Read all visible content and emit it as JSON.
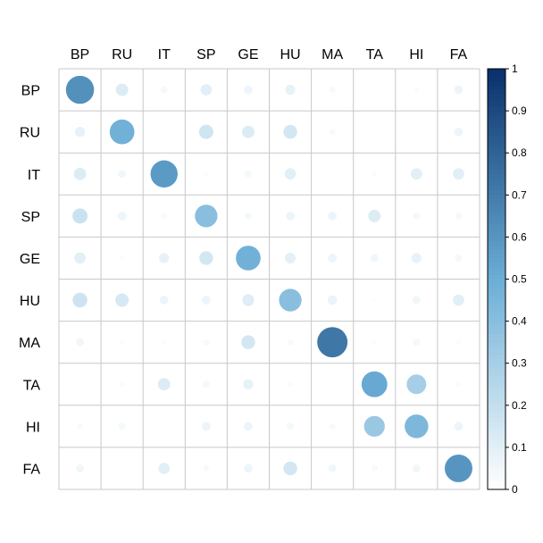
{
  "chart_data": {
    "type": "heatmap",
    "subtype": "correlation-circle-matrix",
    "title": "",
    "xlabel": "",
    "ylabel": "",
    "categories": [
      "BP",
      "RU",
      "IT",
      "SP",
      "GE",
      "HU",
      "MA",
      "TA",
      "HI",
      "FA"
    ],
    "matrix": [
      [
        0.62,
        0.12,
        0.04,
        0.1,
        0.06,
        0.08,
        0.03,
        0.0,
        0.02,
        0.06
      ],
      [
        0.08,
        0.48,
        0.0,
        0.16,
        0.12,
        0.15,
        0.03,
        0.0,
        0.0,
        0.06
      ],
      [
        0.12,
        0.05,
        0.58,
        0.02,
        0.04,
        0.1,
        0.0,
        0.02,
        0.1,
        0.1
      ],
      [
        0.18,
        0.06,
        0.03,
        0.4,
        0.04,
        0.06,
        0.06,
        0.12,
        0.04,
        0.04
      ],
      [
        0.1,
        0.02,
        0.08,
        0.15,
        0.48,
        0.09,
        0.06,
        0.05,
        0.08,
        0.04
      ],
      [
        0.17,
        0.14,
        0.06,
        0.06,
        0.11,
        0.4,
        0.07,
        0.01,
        0.05,
        0.1
      ],
      [
        0.05,
        0.02,
        0.02,
        0.03,
        0.15,
        0.03,
        0.72,
        0.02,
        0.04,
        0.02
      ],
      [
        0.0,
        0.02,
        0.12,
        0.04,
        0.08,
        0.02,
        0.0,
        0.52,
        0.3,
        0.02
      ],
      [
        0.03,
        0.04,
        0.0,
        0.06,
        0.06,
        0.04,
        0.03,
        0.34,
        0.44,
        0.06
      ],
      [
        0.05,
        0.0,
        0.1,
        0.03,
        0.06,
        0.15,
        0.05,
        0.03,
        0.05,
        0.6
      ]
    ],
    "colorbar": {
      "range": [
        0,
        1
      ],
      "ticks": [
        "0",
        "0.1",
        "0.2",
        "0.3",
        "0.4",
        "0.5",
        "0.6",
        "0.7",
        "0.8",
        "0.9",
        "1"
      ],
      "low_color": "#ffffff",
      "mid_color": "#6baed6",
      "high_color": "#08306b"
    },
    "grid": true,
    "legend": "right"
  }
}
